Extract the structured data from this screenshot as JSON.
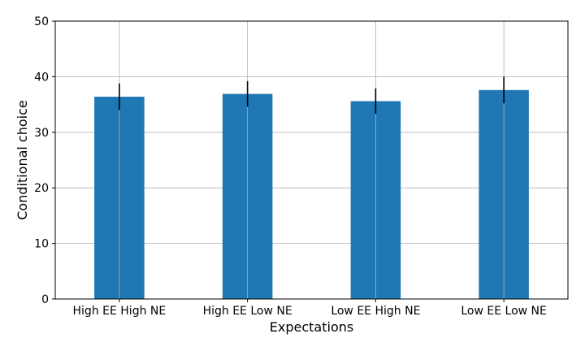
{
  "chart_data": {
    "type": "bar",
    "title": "",
    "xlabel": "Expectations",
    "ylabel": "Conditional choice",
    "categories": [
      "High EE High NE",
      "High EE Low NE",
      "Low EE High NE",
      "Low EE Low NE"
    ],
    "values": [
      36.4,
      36.9,
      35.6,
      37.6
    ],
    "errors": [
      2.4,
      2.3,
      2.3,
      2.4
    ],
    "ylim": [
      0,
      50
    ],
    "yticks": [
      0,
      10,
      20,
      30,
      40,
      50
    ],
    "grid": true,
    "bar_color": "#1f77b4",
    "error_color": "#000000",
    "grid_color": "#b0b0b0"
  }
}
